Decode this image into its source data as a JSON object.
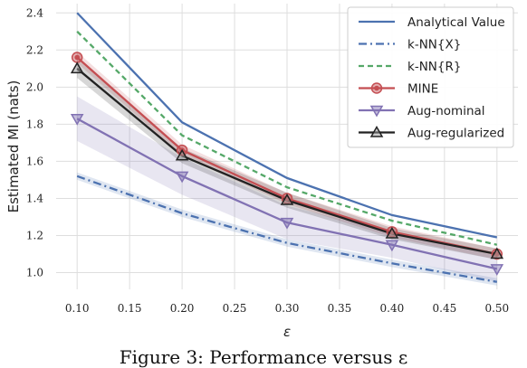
{
  "caption": "Figure 3: Performance versus ε",
  "chart_data": {
    "type": "line",
    "xlabel": "ε",
    "ylabel": "Estimated MI (nats)",
    "x": [
      0.1,
      0.2,
      0.3,
      0.4,
      0.5
    ],
    "xlim": [
      0.08,
      0.52
    ],
    "ylim": [
      0.91,
      2.45
    ],
    "xticks": [
      0.1,
      0.15,
      0.2,
      0.25,
      0.3,
      0.35,
      0.4,
      0.45,
      0.5
    ],
    "yticks": [
      1.0,
      1.2,
      1.4,
      1.6,
      1.8,
      2.0,
      2.2,
      2.4
    ],
    "grid": true,
    "legend_position": "top-right",
    "series": [
      {
        "name": "Analytical Value",
        "values": [
          2.4,
          1.81,
          1.51,
          1.31,
          1.19
        ],
        "color": "#4c72b0",
        "style": "solid",
        "marker": "none",
        "band": [
          0,
          0,
          0,
          0,
          0
        ]
      },
      {
        "name": "k-NN{X}",
        "values": [
          1.52,
          1.32,
          1.16,
          1.05,
          0.95
        ],
        "color": "#4c72b0",
        "style": "dashdot",
        "marker": "none",
        "band": [
          0.02,
          0.02,
          0.02,
          0.02,
          0.02
        ]
      },
      {
        "name": "k-NN{R}",
        "values": [
          2.3,
          1.74,
          1.46,
          1.28,
          1.15
        ],
        "color": "#55a868",
        "style": "dashed",
        "marker": "none",
        "band": [
          0,
          0,
          0,
          0,
          0
        ]
      },
      {
        "name": "MINE",
        "values": [
          2.16,
          1.66,
          1.4,
          1.22,
          1.1
        ],
        "color": "#c44e52",
        "style": "solid",
        "marker": "circle",
        "band": [
          0.03,
          0.03,
          0.03,
          0.03,
          0.03
        ]
      },
      {
        "name": "Aug-nominal",
        "values": [
          1.83,
          1.52,
          1.27,
          1.15,
          1.02
        ],
        "color": "#8172b3",
        "style": "solid",
        "marker": "triangle-down",
        "band": [
          0.12,
          0.1,
          0.09,
          0.07,
          0.07
        ]
      },
      {
        "name": "Aug-regularized",
        "values": [
          2.1,
          1.63,
          1.39,
          1.21,
          1.1
        ],
        "color": "#222222",
        "style": "solid",
        "marker": "triangle-up",
        "band": [
          0.05,
          0.04,
          0.04,
          0.03,
          0.03
        ]
      }
    ]
  }
}
